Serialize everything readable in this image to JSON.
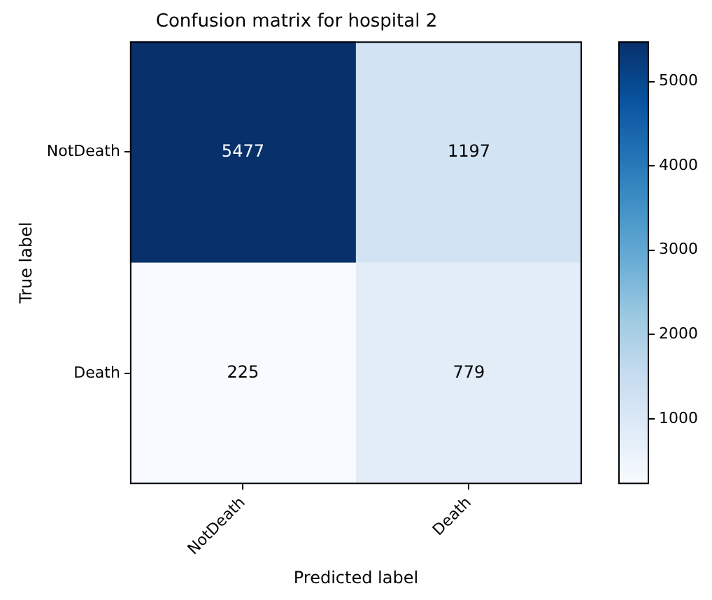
{
  "chart_data": {
    "type": "heatmap",
    "title": "Confusion matrix for hospital 2",
    "xlabel": "Predicted label",
    "ylabel": "True label",
    "categories": [
      "NotDeath",
      "Death"
    ],
    "y_categories": [
      "NotDeath",
      "Death"
    ],
    "cells": [
      [
        5477,
        1197
      ],
      [
        225,
        779
      ]
    ],
    "data_labels": true,
    "clim": [
      225,
      5477
    ],
    "cticks": [
      1000,
      2000,
      3000,
      4000,
      5000
    ]
  }
}
